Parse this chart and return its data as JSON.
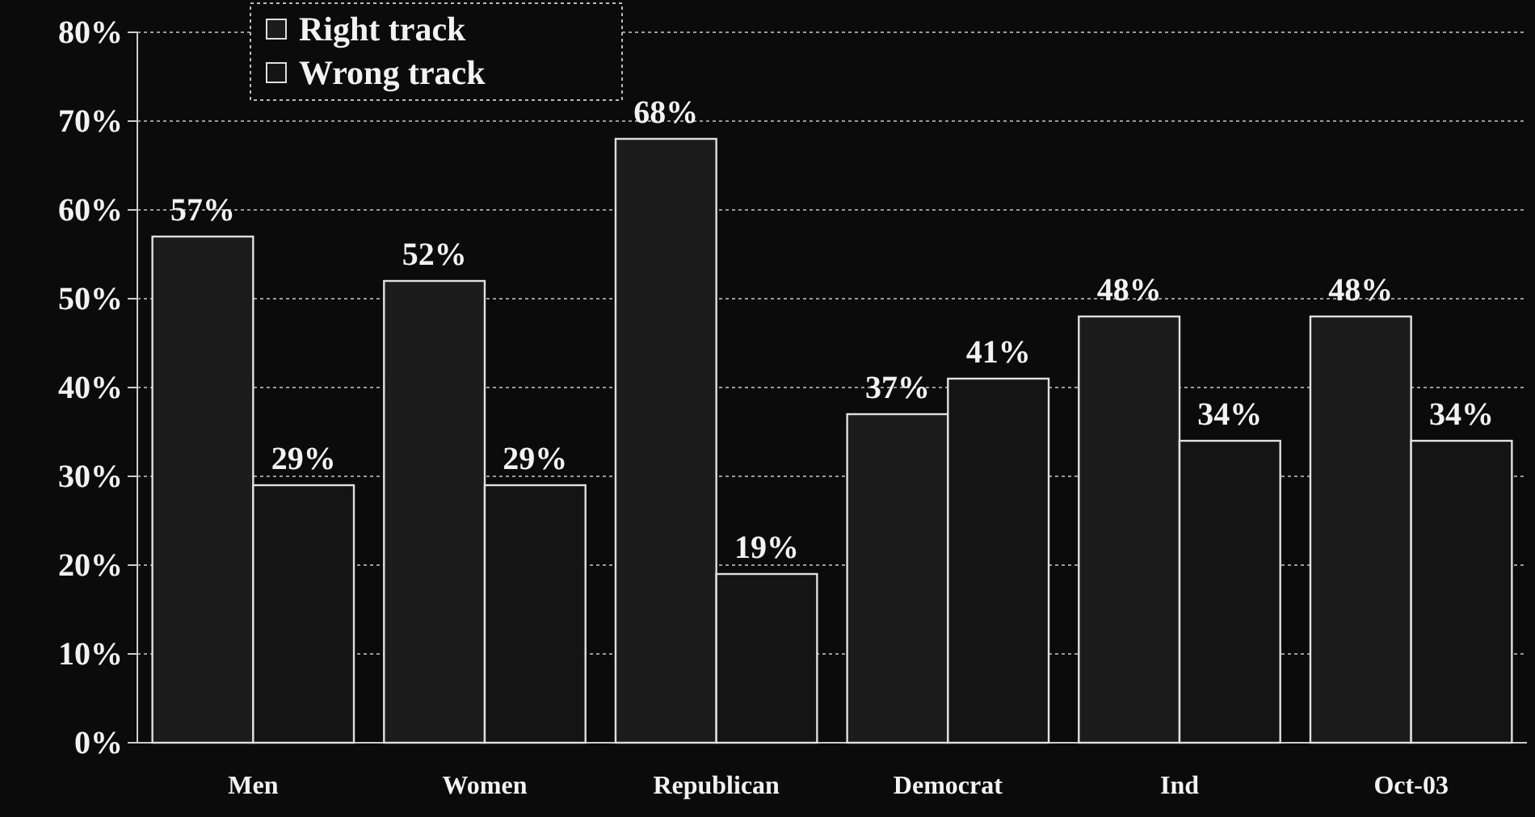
{
  "chart_data": {
    "type": "bar",
    "categories": [
      "Men",
      "Women",
      "Republican",
      "Democrat",
      "Ind",
      "Oct-03"
    ],
    "series": [
      {
        "name": "Right track",
        "color": "#1c1c1c",
        "values": [
          57,
          52,
          68,
          37,
          48,
          48
        ],
        "value_labels": [
          "57%",
          "52%",
          "68%",
          "37%",
          "48%",
          "48%"
        ]
      },
      {
        "name": "Wrong track",
        "color": "#141414",
        "values": [
          29,
          29,
          19,
          41,
          34,
          34
        ],
        "value_labels": [
          "29%",
          "29%",
          "19%",
          "41%",
          "34%",
          "34%"
        ]
      }
    ],
    "ylim": [
      0,
      80
    ],
    "yticks": [
      {
        "value": 0,
        "label": "0%"
      },
      {
        "value": 10,
        "label": "10%"
      },
      {
        "value": 20,
        "label": "20%"
      },
      {
        "value": 30,
        "label": "30%"
      },
      {
        "value": 40,
        "label": "40%"
      },
      {
        "value": 50,
        "label": "50%"
      },
      {
        "value": 60,
        "label": "60%"
      },
      {
        "value": 70,
        "label": "70%"
      },
      {
        "value": 80,
        "label": "80%"
      }
    ],
    "grid": "y",
    "legend": "top left"
  }
}
